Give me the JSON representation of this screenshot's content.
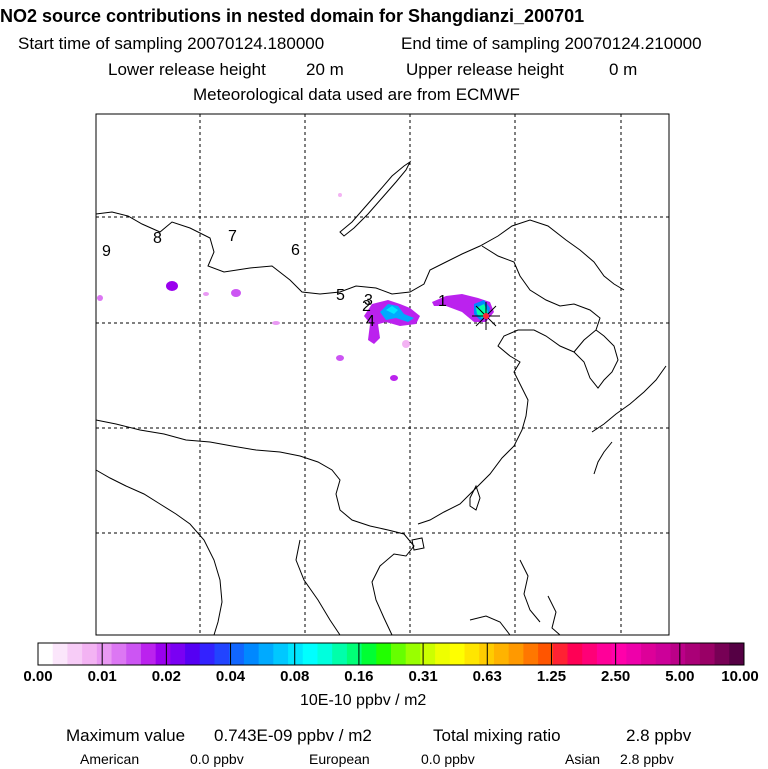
{
  "header": {
    "title": "NO2 source contributions in nested domain for Shangdianzi_200701",
    "start_label": "Start time of sampling 20070124.180000",
    "end_label": "End time of sampling 20070124.210000",
    "lower_label": "Lower release height",
    "lower_value": "20 m",
    "upper_label": "Upper release height",
    "upper_value": "0 m",
    "met_label": "Meteorological data used are from ECMWF"
  },
  "map": {
    "region_labels": [
      "1",
      "2",
      "3",
      "4",
      "5",
      "6",
      "7",
      "8",
      "9"
    ],
    "receptor_name": "Shangdianzi"
  },
  "colorbar": {
    "tick_labels": [
      "0.00",
      "0.01",
      "0.02",
      "0.04",
      "0.08",
      "0.16",
      "0.31",
      "0.63",
      "1.25",
      "2.50",
      "5.00",
      "10.00"
    ],
    "unit": "10E-10 ppbv / m2",
    "colors": [
      "#ffffff",
      "#fbe6fb",
      "#f7ccf7",
      "#f3b3f3",
      "#e999f3",
      "#dc77f3",
      "#cc55f3",
      "#bb22ee",
      "#9a00ee",
      "#7a00f3",
      "#5500f3",
      "#3322ff",
      "#2244ff",
      "#1166ff",
      "#0088ff",
      "#00aaff",
      "#00c8ff",
      "#00e6ff",
      "#00ffff",
      "#00ffdd",
      "#00ffaa",
      "#00ff77",
      "#00ff33",
      "#22ff00",
      "#66ff00",
      "#99ff00",
      "#ccff00",
      "#eeff00",
      "#ffff00",
      "#ffe600",
      "#ffcc00",
      "#ffb300",
      "#ff9900",
      "#ff7700",
      "#ff5500",
      "#ff2233",
      "#ff0055",
      "#ff0077",
      "#ff0099",
      "#ff00aa",
      "#ee00aa",
      "#dd0099",
      "#cc0099",
      "#bb0088",
      "#aa0077",
      "#990066",
      "#770055",
      "#550044"
    ]
  },
  "stats": {
    "max_label": "Maximum value",
    "max_value": "0.743E-09 ppbv / m2",
    "total_label": "Total mixing ratio",
    "total_value": "2.8 ppbv",
    "american_label": "American",
    "american_value": "0.0 ppbv",
    "european_label": "European",
    "european_value": "0.0 ppbv",
    "asian_label": "Asian",
    "asian_value": "2.8 ppbv"
  }
}
